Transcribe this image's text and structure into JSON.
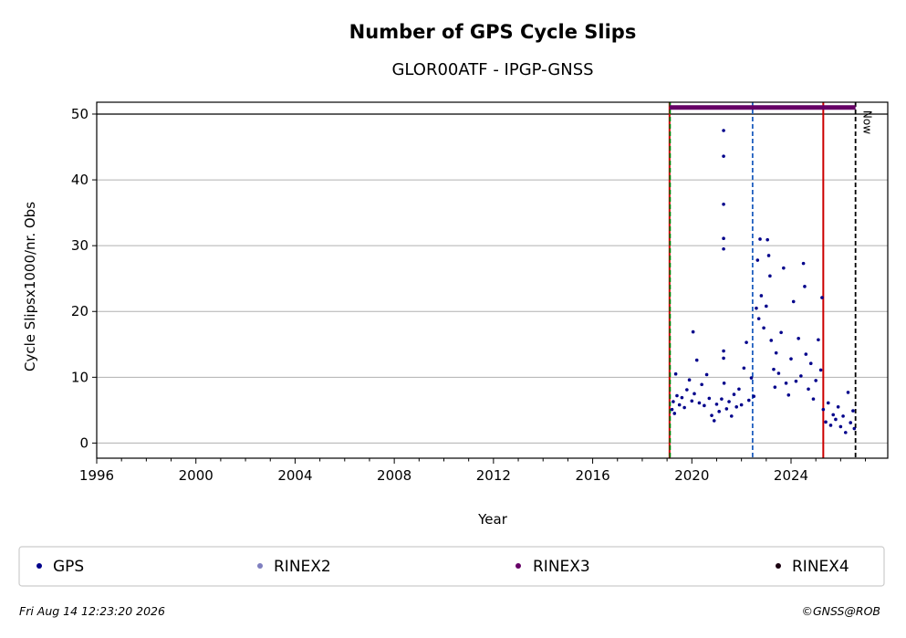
{
  "chart_data": {
    "type": "scatter",
    "title": "Number of GPS Cycle Slips",
    "subtitle": "GLOR00ATF - IPGP-GNSS",
    "xlabel": "Year",
    "ylabel": "Cycle Slipsx1000/nr. Obs",
    "xlim": [
      1996,
      2027.9
    ],
    "ylim": [
      -2.3,
      51.8
    ],
    "xticks": [
      1996,
      2000,
      2004,
      2008,
      2012,
      2016,
      2020,
      2024
    ],
    "yticks": [
      0,
      10,
      20,
      30,
      40,
      50
    ],
    "grid": "horizontal",
    "legend_position": "bottom",
    "colors": {
      "gps": "#00008b",
      "rinex2": "#7f7fbf",
      "rinex3": "#660066",
      "rinex4": "#1a0010"
    },
    "series": [
      {
        "name": "GPS",
        "points": [
          [
            2019.2,
            5.1
          ],
          [
            2019.25,
            6.3
          ],
          [
            2019.3,
            4.5
          ],
          [
            2019.35,
            10.5
          ],
          [
            2019.4,
            7.2
          ],
          [
            2019.5,
            5.8
          ],
          [
            2019.6,
            6.9
          ],
          [
            2019.7,
            5.4
          ],
          [
            2019.8,
            8.1
          ],
          [
            2019.9,
            9.6
          ],
          [
            2020.0,
            6.4
          ],
          [
            2020.05,
            16.9
          ],
          [
            2020.1,
            7.5
          ],
          [
            2020.2,
            12.6
          ],
          [
            2020.3,
            6.1
          ],
          [
            2020.4,
            8.9
          ],
          [
            2020.5,
            5.7
          ],
          [
            2020.6,
            10.4
          ],
          [
            2020.7,
            6.8
          ],
          [
            2020.8,
            4.2
          ],
          [
            2020.9,
            3.4
          ],
          [
            2021.0,
            5.9
          ],
          [
            2021.1,
            4.8
          ],
          [
            2021.2,
            6.7
          ],
          [
            2021.28,
            47.5
          ],
          [
            2021.28,
            43.6
          ],
          [
            2021.28,
            36.3
          ],
          [
            2021.28,
            31.1
          ],
          [
            2021.28,
            29.5
          ],
          [
            2021.28,
            14.0
          ],
          [
            2021.28,
            12.9
          ],
          [
            2021.3,
            9.1
          ],
          [
            2021.4,
            5.2
          ],
          [
            2021.5,
            6.3
          ],
          [
            2021.6,
            4.1
          ],
          [
            2021.7,
            7.4
          ],
          [
            2021.8,
            5.5
          ],
          [
            2021.9,
            8.2
          ],
          [
            2022.0,
            5.8
          ],
          [
            2022.1,
            11.4
          ],
          [
            2022.2,
            15.3
          ],
          [
            2022.3,
            6.5
          ],
          [
            2022.4,
            9.9
          ],
          [
            2022.5,
            7.1
          ],
          [
            2022.6,
            20.5
          ],
          [
            2022.65,
            27.8
          ],
          [
            2022.7,
            18.9
          ],
          [
            2022.75,
            31.0
          ],
          [
            2022.8,
            22.4
          ],
          [
            2022.9,
            17.5
          ],
          [
            2023.0,
            20.8
          ],
          [
            2023.05,
            30.9
          ],
          [
            2023.1,
            28.5
          ],
          [
            2023.15,
            25.4
          ],
          [
            2023.2,
            15.6
          ],
          [
            2023.3,
            11.2
          ],
          [
            2023.35,
            8.5
          ],
          [
            2023.4,
            13.7
          ],
          [
            2023.5,
            10.6
          ],
          [
            2023.6,
            16.8
          ],
          [
            2023.7,
            26.6
          ],
          [
            2023.8,
            9.1
          ],
          [
            2023.9,
            7.3
          ],
          [
            2024.0,
            12.8
          ],
          [
            2024.1,
            21.5
          ],
          [
            2024.2,
            9.4
          ],
          [
            2024.3,
            15.9
          ],
          [
            2024.4,
            10.2
          ],
          [
            2024.5,
            27.3
          ],
          [
            2024.55,
            23.8
          ],
          [
            2024.6,
            13.5
          ],
          [
            2024.7,
            8.2
          ],
          [
            2024.8,
            12.1
          ],
          [
            2024.9,
            6.7
          ],
          [
            2025.0,
            9.5
          ],
          [
            2025.1,
            15.7
          ],
          [
            2025.2,
            11.1
          ],
          [
            2025.25,
            22.1
          ],
          [
            2025.3,
            5.1
          ],
          [
            2025.4,
            3.2
          ],
          [
            2025.5,
            6.1
          ],
          [
            2025.6,
            2.7
          ],
          [
            2025.7,
            4.3
          ],
          [
            2025.8,
            3.6
          ],
          [
            2025.9,
            5.5
          ],
          [
            2026.0,
            2.5
          ],
          [
            2026.1,
            4.1
          ],
          [
            2026.2,
            1.6
          ],
          [
            2026.3,
            7.7
          ],
          [
            2026.4,
            3.1
          ],
          [
            2026.5,
            4.9
          ],
          [
            2026.55,
            2.2
          ]
        ]
      },
      {
        "name": "RINEX2",
        "points": []
      },
      {
        "name": "RINEX3",
        "range": [
          2019.1,
          2026.6
        ],
        "y": 51.0
      },
      {
        "name": "RINEX4",
        "points": []
      }
    ],
    "event_lines": [
      {
        "x": 2019.1,
        "color": "#cc0000",
        "style": "solid"
      },
      {
        "x": 2019.12,
        "color": "#008000",
        "style": "dashed"
      },
      {
        "x": 2022.45,
        "color": "#1f5fbf",
        "style": "dashed"
      },
      {
        "x": 2025.3,
        "color": "#cc0000",
        "style": "solid"
      },
      {
        "x": 2026.6,
        "color": "#000000",
        "style": "dashed",
        "label": "Now"
      }
    ],
    "legend": [
      "GPS",
      "RINEX2",
      "RINEX3",
      "RINEX4"
    ]
  },
  "footer": {
    "timestamp": "Fri Aug 14 12:23:20 2026",
    "credit": "©GNSS@ROB"
  }
}
